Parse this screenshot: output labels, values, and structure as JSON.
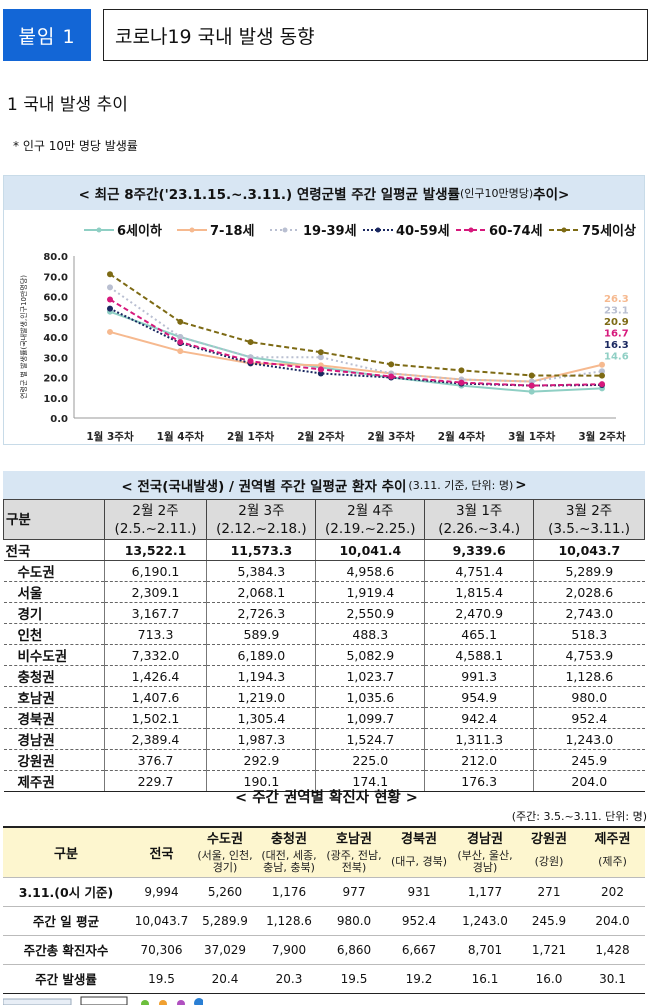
{
  "header": {
    "badge": "붙임 1",
    "title": "코로나19 국내 발생 동향"
  },
  "section": {
    "title": "1  국내 발생 추이",
    "note": "* 인구 10만 명당 발생률"
  },
  "chart_section": {
    "title_main": "< 최근 8주간('23.1.15.~.3.11.) 연령군별 주간 일평균 발생률",
    "title_small": "(인구10만명당)",
    "title_tail": " 추이>"
  },
  "chart_data": {
    "type": "line",
    "title": "최근 8주간('23.1.15.~.3.11.) 연령군별 주간 일평균 발생률(인구10만명당) 추이",
    "ylabel": "연령군 별 발생률(국내발생,인구10만명당)",
    "xlabel": "",
    "ylim": [
      0,
      80
    ],
    "yticks": [
      "0.0",
      "10.0",
      "20.0",
      "30.0",
      "40.0",
      "50.0",
      "60.0",
      "70.0",
      "80.0"
    ],
    "categories": [
      "1월 3주차",
      "1월 4주차",
      "2월 1주차",
      "2월 2주차",
      "2월 3주차",
      "2월 4주차",
      "3월 1주차",
      "3월 2주차"
    ],
    "legend_position": "top",
    "series": [
      {
        "name": "6세이하",
        "color": "#8fcfc4",
        "dash": "",
        "values": [
          52.5,
          40.0,
          30.0,
          25.0,
          20.0,
          16.0,
          13.0,
          14.6
        ],
        "end_label": "14.6"
      },
      {
        "name": "7-18세",
        "color": "#f6b98f",
        "dash": "",
        "values": [
          42.5,
          33.0,
          27.0,
          26.0,
          22.0,
          19.0,
          18.0,
          26.3
        ],
        "end_label": "26.3"
      },
      {
        "name": "19-39세",
        "color": "#b9bfd1",
        "dash": "2,3",
        "values": [
          64.5,
          40.0,
          30.0,
          30.0,
          22.0,
          19.0,
          18.0,
          23.1
        ],
        "end_label": "23.1"
      },
      {
        "name": "40-59세",
        "color": "#1a2860",
        "dash": "2,2",
        "values": [
          54.0,
          37.0,
          27.0,
          22.0,
          20.0,
          17.0,
          16.0,
          16.3
        ],
        "end_label": "16.3"
      },
      {
        "name": "60-74세",
        "color": "#d6197c",
        "dash": "5,3",
        "values": [
          58.5,
          37.5,
          28.0,
          24.0,
          20.5,
          17.5,
          16.0,
          16.7
        ],
        "end_label": "16.7"
      },
      {
        "name": "75세이상",
        "color": "#7d6a14",
        "dash": "5,3",
        "values": [
          71.0,
          47.5,
          37.5,
          32.5,
          26.5,
          23.5,
          21.0,
          20.9
        ],
        "end_label": "20.9"
      }
    ]
  },
  "regional_trend": {
    "title_main": "< 전국(국내발생) / 권역별 주간 일평균 환자 추이",
    "title_small": "(3.11. 기준, 단위: 명)",
    "title_tail": ">",
    "corner": "구분",
    "weeks": [
      {
        "l1": "2월 2주",
        "l2": "(2.5.~2.11.)"
      },
      {
        "l1": "2월 3주",
        "l2": "(2.12.~2.18.)"
      },
      {
        "l1": "2월 4주",
        "l2": "(2.19.~2.25.)"
      },
      {
        "l1": "3월 1주",
        "l2": "(2.26.~3.4.)"
      },
      {
        "l1": "3월 2주",
        "l2": "(3.5.~3.11.)"
      }
    ],
    "rows": [
      {
        "label": "전국",
        "values": [
          "13,522.1",
          "11,573.3",
          "10,041.4",
          "9,339.6",
          "10,043.7"
        ]
      },
      {
        "label": "수도권",
        "values": [
          "6,190.1",
          "5,384.3",
          "4,958.6",
          "4,751.4",
          "5,289.9"
        ]
      },
      {
        "label": "서울",
        "values": [
          "2,309.1",
          "2,068.1",
          "1,919.4",
          "1,815.4",
          "2,028.6"
        ]
      },
      {
        "label": "경기",
        "values": [
          "3,167.7",
          "2,726.3",
          "2,550.9",
          "2,470.9",
          "2,743.0"
        ]
      },
      {
        "label": "인천",
        "values": [
          "713.3",
          "589.9",
          "488.3",
          "465.1",
          "518.3"
        ]
      },
      {
        "label": "비수도권",
        "values": [
          "7,332.0",
          "6,189.0",
          "5,082.9",
          "4,588.1",
          "4,753.9"
        ]
      },
      {
        "label": "충청권",
        "values": [
          "1,426.4",
          "1,194.3",
          "1,023.7",
          "991.3",
          "1,128.6"
        ]
      },
      {
        "label": "호남권",
        "values": [
          "1,407.6",
          "1,219.0",
          "1,035.6",
          "954.9",
          "980.0"
        ]
      },
      {
        "label": "경북권",
        "values": [
          "1,502.1",
          "1,305.4",
          "1,099.7",
          "942.4",
          "952.4"
        ]
      },
      {
        "label": "경남권",
        "values": [
          "2,389.4",
          "1,987.3",
          "1,524.7",
          "1,311.3",
          "1,243.0"
        ]
      },
      {
        "label": "강원권",
        "values": [
          "376.7",
          "292.9",
          "225.0",
          "212.0",
          "245.9"
        ]
      },
      {
        "label": "제주권",
        "values": [
          "229.7",
          "190.1",
          "174.1",
          "176.3",
          "204.0"
        ]
      }
    ]
  },
  "weekly_region": {
    "title": "< 주간 권역별 확진자 현황 >",
    "unit": "(주간: 3.5.~3.11. 단위: 명)",
    "corner": "구분",
    "national": "전국",
    "regions": [
      {
        "name": "수도권",
        "sub": "(서울, 인천, 경기)"
      },
      {
        "name": "충청권",
        "sub": "(대전, 세종, 충남, 충북)"
      },
      {
        "name": "호남권",
        "sub": "(광주, 전남, 전북)"
      },
      {
        "name": "경북권",
        "sub": "(대구, 경북)"
      },
      {
        "name": "경남권",
        "sub": "(부산, 울산, 경남)"
      },
      {
        "name": "강원권",
        "sub": "(강원)"
      },
      {
        "name": "제주권",
        "sub": "(제주)"
      }
    ],
    "rows": [
      {
        "label": "3.11.(0시 기준)",
        "values": [
          "9,994",
          "5,260",
          "1,176",
          "977",
          "931",
          "1,177",
          "271",
          "202"
        ]
      },
      {
        "label": "주간 일 평균",
        "values": [
          "10,043.7",
          "5,289.9",
          "1,128.6",
          "980.0",
          "952.4",
          "1,243.0",
          "245.9",
          "204.0"
        ]
      },
      {
        "label": "주간총 확진자수",
        "values": [
          "70,306",
          "37,029",
          "7,900",
          "6,860",
          "6,667",
          "8,701",
          "1,721",
          "1,428"
        ]
      },
      {
        "label": "주간 발생률",
        "values": [
          "19.5",
          "20.4",
          "20.3",
          "19.5",
          "19.2",
          "16.1",
          "16.0",
          "30.1"
        ]
      }
    ]
  }
}
